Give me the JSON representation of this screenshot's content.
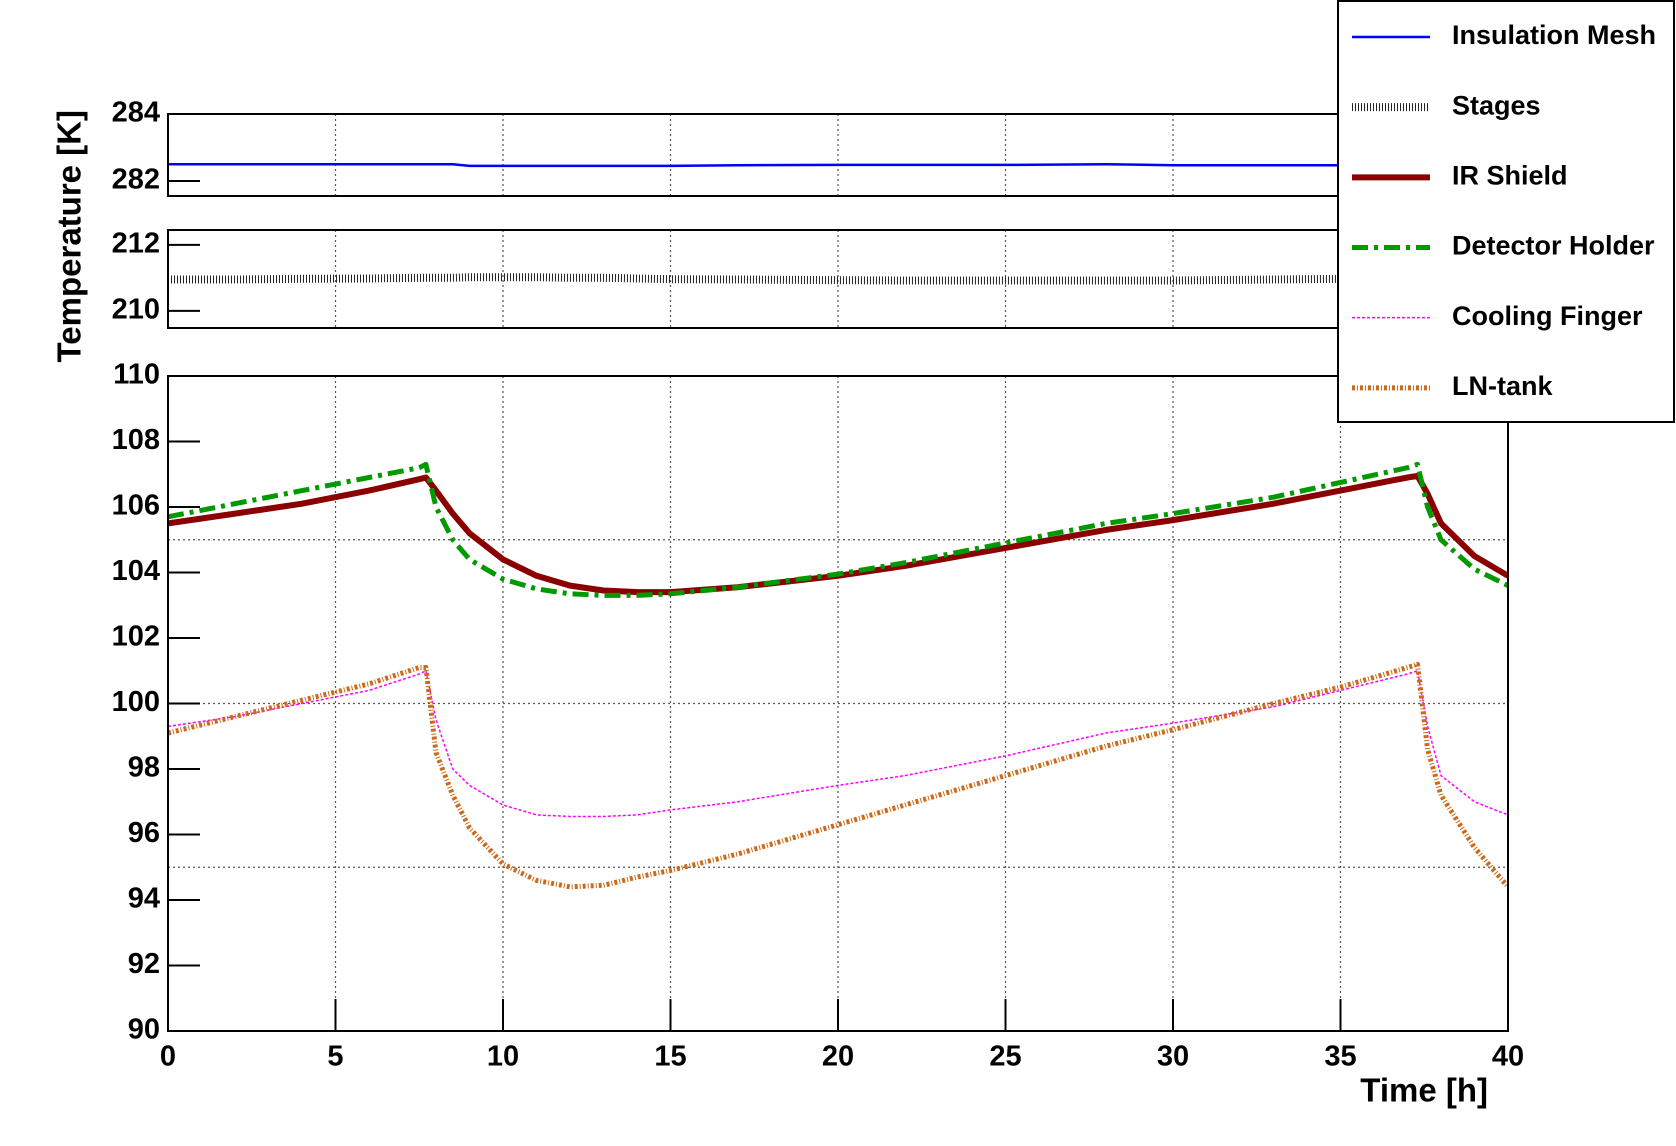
{
  "chart_data": {
    "type": "line",
    "xlabel": "Time [h]",
    "ylabel": "Temperature [K]",
    "legend": "top-right",
    "grid": true,
    "x": [
      0,
      2,
      4,
      6,
      7.5,
      7.7,
      8,
      8.5,
      9,
      10,
      11,
      12,
      13,
      14,
      15,
      17,
      20,
      22,
      25,
      28,
      30,
      33,
      35,
      37,
      37.3,
      37.6,
      38,
      39,
      40
    ],
    "xlim": [
      0,
      40
    ],
    "xticks": [
      0,
      5,
      10,
      15,
      20,
      25,
      30,
      35,
      40
    ],
    "y_segments": [
      {
        "ylim": [
          281.55,
          284
        ],
        "yticks": [
          282,
          284
        ],
        "grid_y": []
      },
      {
        "ylim": [
          209.48,
          212.45
        ],
        "yticks": [
          210,
          212
        ],
        "grid_y": []
      },
      {
        "ylim": [
          90,
          110
        ],
        "yticks": [
          90,
          92,
          94,
          96,
          98,
          100,
          102,
          104,
          106,
          108,
          110
        ],
        "grid_y": [
          95,
          100,
          105
        ]
      }
    ],
    "series": [
      {
        "name": "Insulation Mesh",
        "color": "#0000ff",
        "width": 2.5,
        "dash": "none",
        "segment": 0,
        "values": [
          282.5,
          282.5,
          282.5,
          282.5,
          282.5,
          282.5,
          282.5,
          282.5,
          282.45,
          282.45,
          282.45,
          282.45,
          282.45,
          282.45,
          282.45,
          282.47,
          282.48,
          282.48,
          282.48,
          282.5,
          282.47,
          282.47,
          282.47,
          282.47,
          282.47,
          282.47,
          282.47,
          282.47,
          282.47
        ]
      },
      {
        "name": "Stages",
        "color": "#222222",
        "width": 8,
        "dash": "1 2",
        "segment": 1,
        "values": [
          210.95,
          210.95,
          210.97,
          210.98,
          211.0,
          211.0,
          211.0,
          211.0,
          211.02,
          211.02,
          211.02,
          211.0,
          211.0,
          210.98,
          210.96,
          210.95,
          210.93,
          210.92,
          210.92,
          210.92,
          210.92,
          210.95,
          210.97,
          210.98,
          210.98,
          210.98,
          210.98,
          210.98,
          210.98
        ]
      },
      {
        "name": "IR Shield",
        "color": "#8b0000",
        "width": 6,
        "dash": "none",
        "segment": 2,
        "values": [
          105.5,
          105.8,
          106.1,
          106.5,
          106.85,
          106.9,
          106.5,
          105.8,
          105.2,
          104.4,
          103.9,
          103.6,
          103.45,
          103.4,
          103.4,
          103.55,
          103.9,
          104.2,
          104.75,
          105.3,
          105.6,
          106.1,
          106.5,
          106.9,
          106.95,
          106.4,
          105.5,
          104.5,
          103.9
        ]
      },
      {
        "name": "Detector Holder",
        "color": "#009900",
        "width": 5,
        "dash": "16 6 4 6",
        "segment": 2,
        "values": [
          105.7,
          106.1,
          106.5,
          106.9,
          107.2,
          107.3,
          106.0,
          105.0,
          104.4,
          103.8,
          103.5,
          103.35,
          103.3,
          103.3,
          103.35,
          103.55,
          103.95,
          104.3,
          104.9,
          105.5,
          105.8,
          106.3,
          106.75,
          107.2,
          107.3,
          106.0,
          105.0,
          104.1,
          103.6
        ]
      },
      {
        "name": "Cooling Finger",
        "color": "#ff00ff",
        "width": 1.5,
        "dash": "3 2",
        "segment": 2,
        "values": [
          99.3,
          99.6,
          100.0,
          100.4,
          100.9,
          101.0,
          99.5,
          98.0,
          97.5,
          96.9,
          96.6,
          96.55,
          96.55,
          96.6,
          96.75,
          97.0,
          97.5,
          97.8,
          98.4,
          99.1,
          99.4,
          99.9,
          100.4,
          100.9,
          101.0,
          99.3,
          97.8,
          97.0,
          96.6
        ]
      },
      {
        "name": "LN-tank",
        "color": "#cc6a1a",
        "width": 5,
        "dash": "3 2 1 2",
        "segment": 2,
        "values": [
          99.1,
          99.6,
          100.1,
          100.6,
          101.1,
          101.1,
          98.5,
          97.2,
          96.2,
          95.1,
          94.6,
          94.4,
          94.45,
          94.7,
          94.9,
          95.4,
          96.3,
          96.9,
          97.8,
          98.7,
          99.2,
          100.0,
          100.5,
          101.1,
          101.2,
          98.6,
          97.2,
          95.6,
          94.4
        ]
      }
    ]
  }
}
